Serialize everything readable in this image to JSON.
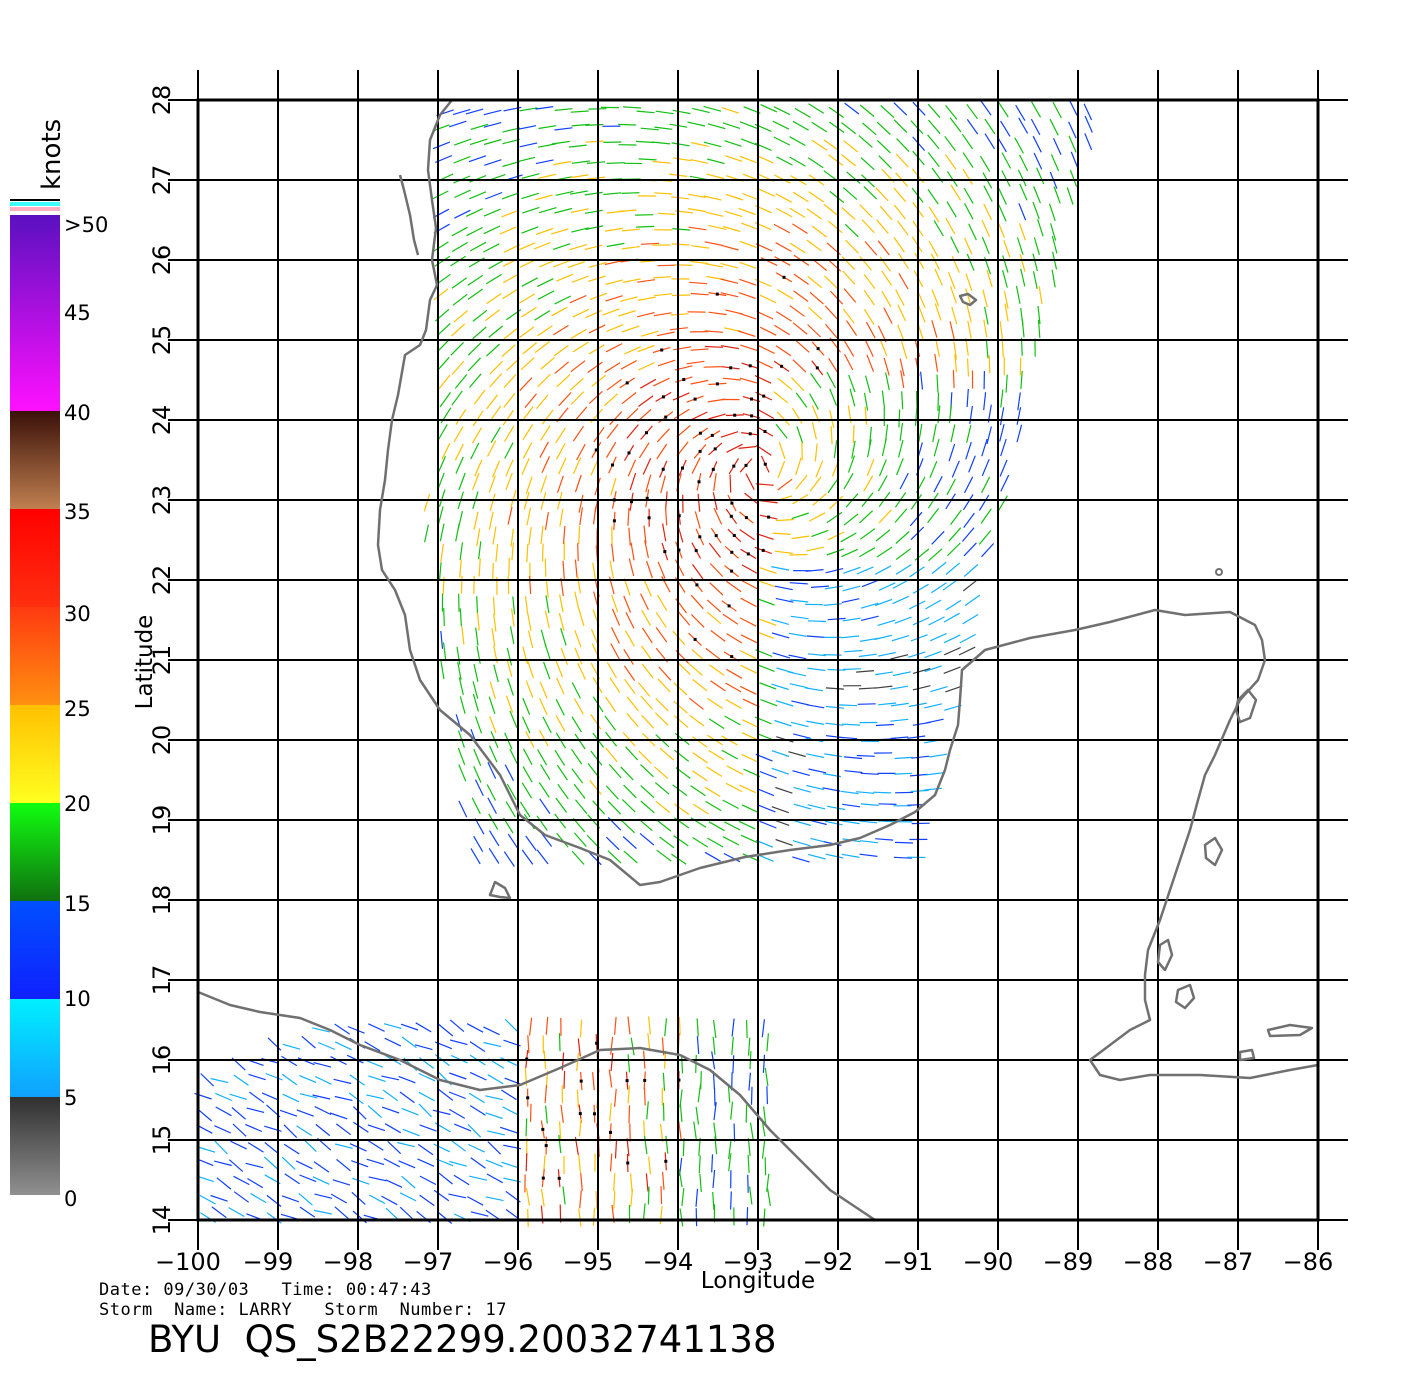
{
  "map": {
    "lon_range": [
      -100,
      -86
    ],
    "lat_range": [
      14,
      28
    ],
    "lon_ticks": [
      "-100",
      "-99",
      "-98",
      "-97",
      "-96",
      "-95",
      "-94",
      "-93",
      "-92",
      "-91",
      "-90",
      "-89",
      "-88",
      "-87",
      "-86"
    ],
    "lat_ticks": [
      "28",
      "27",
      "26",
      "25",
      "24",
      "23",
      "22",
      "21",
      "20",
      "19",
      "18",
      "17",
      "16",
      "15",
      "14"
    ],
    "xlabel": "Longitude",
    "ylabel": "Latitude",
    "grid": true,
    "coast_color": "#707070"
  },
  "colorbar": {
    "title": "knots",
    "labels": [
      ">50",
      "45",
      "40",
      "35",
      "30",
      "25",
      "20",
      "15",
      "10",
      "5",
      "0"
    ],
    "bands": [
      {
        "min": 40,
        "max": 50,
        "from": "#ff10ff",
        "to": "#5a10c0"
      },
      {
        "min": 35,
        "max": 40,
        "from": "#c08050",
        "to": "#3a1008"
      },
      {
        "min": 30,
        "max": 35,
        "from": "#ff3010",
        "to": "#ff0000"
      },
      {
        "min": 25,
        "max": 30,
        "from": "#ff9010",
        "to": "#ff3a10"
      },
      {
        "min": 20,
        "max": 25,
        "from": "#ffff20",
        "to": "#ffc000"
      },
      {
        "min": 15,
        "max": 20,
        "from": "#107010",
        "to": "#10ff10"
      },
      {
        "min": 10,
        "max": 15,
        "from": "#1020ff",
        "to": "#0050ff"
      },
      {
        "min": 5,
        "max": 10,
        "from": "#10a0ff",
        "to": "#00f0ff"
      },
      {
        "min": 0,
        "max": 5,
        "from": "#909090",
        "to": "#303030"
      }
    ]
  },
  "footer": {
    "date_line": "Date: 09/30/03   Time: 00:47:43",
    "storm_line": "Storm  Name: LARRY   Storm  Number: 17",
    "product": "BYU  QS_S2B22299.20032741138"
  }
}
